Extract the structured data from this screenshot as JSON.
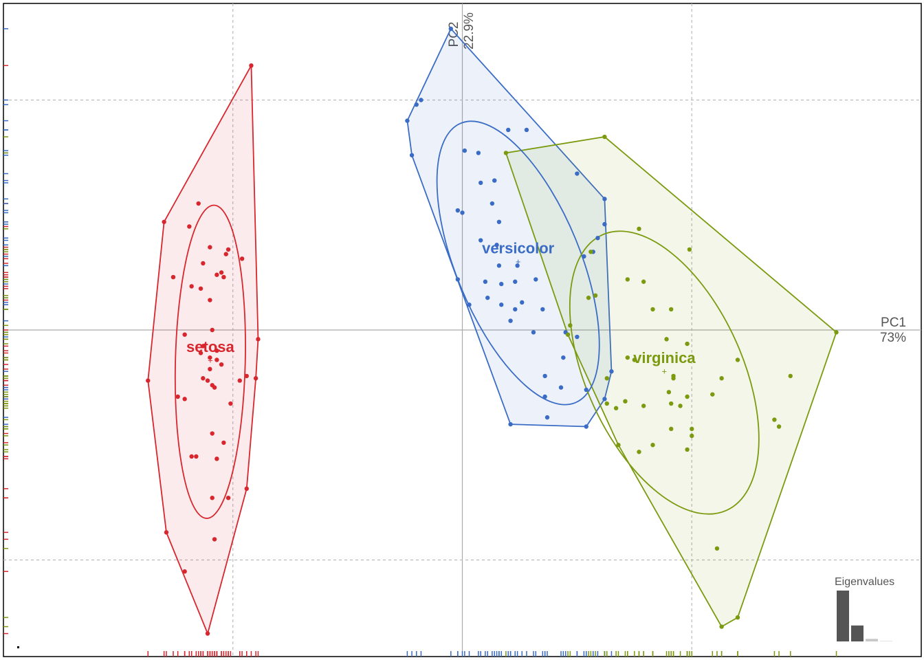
{
  "chart_data": {
    "type": "scatter",
    "xlim": [
      -2.0,
      2.0
    ],
    "ylim": [
      -1.42,
      1.42
    ],
    "xticks": [
      -1,
      0,
      1
    ],
    "yticks": [
      -1,
      0,
      1
    ],
    "grid": true,
    "xlabel": [
      "PC1",
      "73%"
    ],
    "ylabel": [
      "PC2",
      "22.9%"
    ],
    "series": [
      {
        "name": "setosa",
        "color": "#d7262d",
        "x": [
          -0.92,
          -1.3,
          -1.15,
          -1.19,
          -1.1,
          -1.02,
          -1.03,
          -0.96,
          -1.13,
          -1.05,
          -1.07,
          -1.04,
          -1.26,
          -1.18,
          -1.14,
          -1.1,
          -1.09,
          -1.21,
          -0.89,
          -1.13,
          -1.07,
          -1.14,
          -1.1,
          -1.07,
          -1.05,
          -1.1,
          -1.13,
          -1.11,
          -0.94,
          -0.97,
          -0.9,
          -1.09,
          -1.08,
          -1.37,
          -1.24,
          -1.21,
          -1.01,
          -1.09,
          -1.04,
          -1.18,
          -1.16,
          -1.07,
          -1.09,
          -1.02,
          -0.94,
          -1.29,
          -1.08,
          -1.21,
          -1.11
        ],
        "y": [
          1.15,
          0.47,
          0.55,
          0.45,
          0.36,
          0.35,
          0.33,
          0.31,
          0.29,
          0.25,
          0.24,
          0.23,
          0.23,
          0.19,
          0.18,
          0.13,
          0.0,
          -0.02,
          -0.04,
          -0.07,
          -0.09,
          -0.1,
          -0.12,
          -0.13,
          -0.15,
          -0.17,
          -0.21,
          -0.22,
          -0.2,
          -0.22,
          -0.21,
          -0.24,
          -0.25,
          -0.22,
          -0.29,
          -0.3,
          -0.32,
          -0.45,
          -0.49,
          -0.55,
          -0.55,
          -0.56,
          -0.73,
          -0.73,
          -0.69,
          -0.88,
          -0.91,
          -1.05,
          -1.32
        ]
      },
      {
        "name": "versicolor",
        "color": "#3a6cc6",
        "x": [
          -0.05,
          -0.18,
          -0.2,
          -0.24,
          0.2,
          0.28,
          -0.22,
          0.01,
          0.07,
          0.14,
          0.08,
          0.5,
          0.13,
          -0.02,
          0.0,
          0.16,
          0.62,
          0.62,
          0.59,
          0.08,
          0.15,
          0.57,
          0.53,
          0.24,
          0.16,
          0.32,
          0.23,
          -0.02,
          0.1,
          0.17,
          0.11,
          0.17,
          0.03,
          0.26,
          0.23,
          0.35,
          0.21,
          0.31,
          0.45,
          0.36,
          0.44,
          0.5,
          0.65,
          0.36,
          0.43,
          0.54,
          0.62,
          0.54,
          0.21,
          0.37
        ],
        "y": [
          1.31,
          1.0,
          0.98,
          0.91,
          0.87,
          0.87,
          0.76,
          0.78,
          0.77,
          0.65,
          0.64,
          0.68,
          0.55,
          0.52,
          0.51,
          0.47,
          0.57,
          0.46,
          0.4,
          0.39,
          0.37,
          0.34,
          0.32,
          0.28,
          0.28,
          0.22,
          0.21,
          0.22,
          0.21,
          0.2,
          0.14,
          0.11,
          0.11,
          0.12,
          0.09,
          0.09,
          0.04,
          -0.01,
          -0.01,
          -0.2,
          -0.12,
          -0.03,
          -0.18,
          -0.29,
          -0.25,
          -0.26,
          -0.3,
          -0.42,
          -0.41,
          -0.38
        ]
      },
      {
        "name": "virginica",
        "color": "#7b9a0f",
        "x": [
          0.62,
          0.19,
          0.77,
          0.99,
          0.72,
          0.79,
          0.56,
          0.58,
          0.55,
          0.47,
          0.46,
          0.83,
          0.91,
          0.89,
          0.98,
          0.72,
          0.75,
          1.2,
          1.13,
          1.43,
          0.92,
          0.92,
          1.09,
          0.9,
          0.91,
          0.98,
          0.95,
          0.79,
          0.67,
          0.63,
          0.71,
          1.36,
          1.38,
          0.91,
          1.0,
          1.0,
          0.83,
          0.77,
          0.98,
          0.68,
          1.11,
          1.63,
          1.2,
          1.13,
          0.63
        ],
        "y": [
          0.84,
          0.77,
          0.44,
          0.35,
          0.22,
          0.21,
          0.34,
          0.15,
          0.14,
          0.02,
          -0.02,
          0.09,
          0.09,
          -0.04,
          -0.06,
          -0.12,
          -0.13,
          -0.13,
          -0.21,
          -0.2,
          -0.2,
          -0.21,
          -0.28,
          -0.27,
          -0.32,
          -0.29,
          -0.33,
          -0.33,
          -0.34,
          -0.32,
          -0.31,
          -0.39,
          -0.42,
          -0.43,
          -0.43,
          -0.46,
          -0.5,
          -0.53,
          -0.52,
          -0.5,
          -0.95,
          -0.01,
          -1.25,
          -1.29,
          -0.21
        ]
      }
    ],
    "eigenvalues": {
      "title": "Eigenvalues",
      "values": [
        73,
        22.9,
        3.7,
        0.5
      ],
      "colors": [
        "#555555",
        "#555555",
        "#c8c8c8",
        "#c8c8c8"
      ]
    }
  }
}
